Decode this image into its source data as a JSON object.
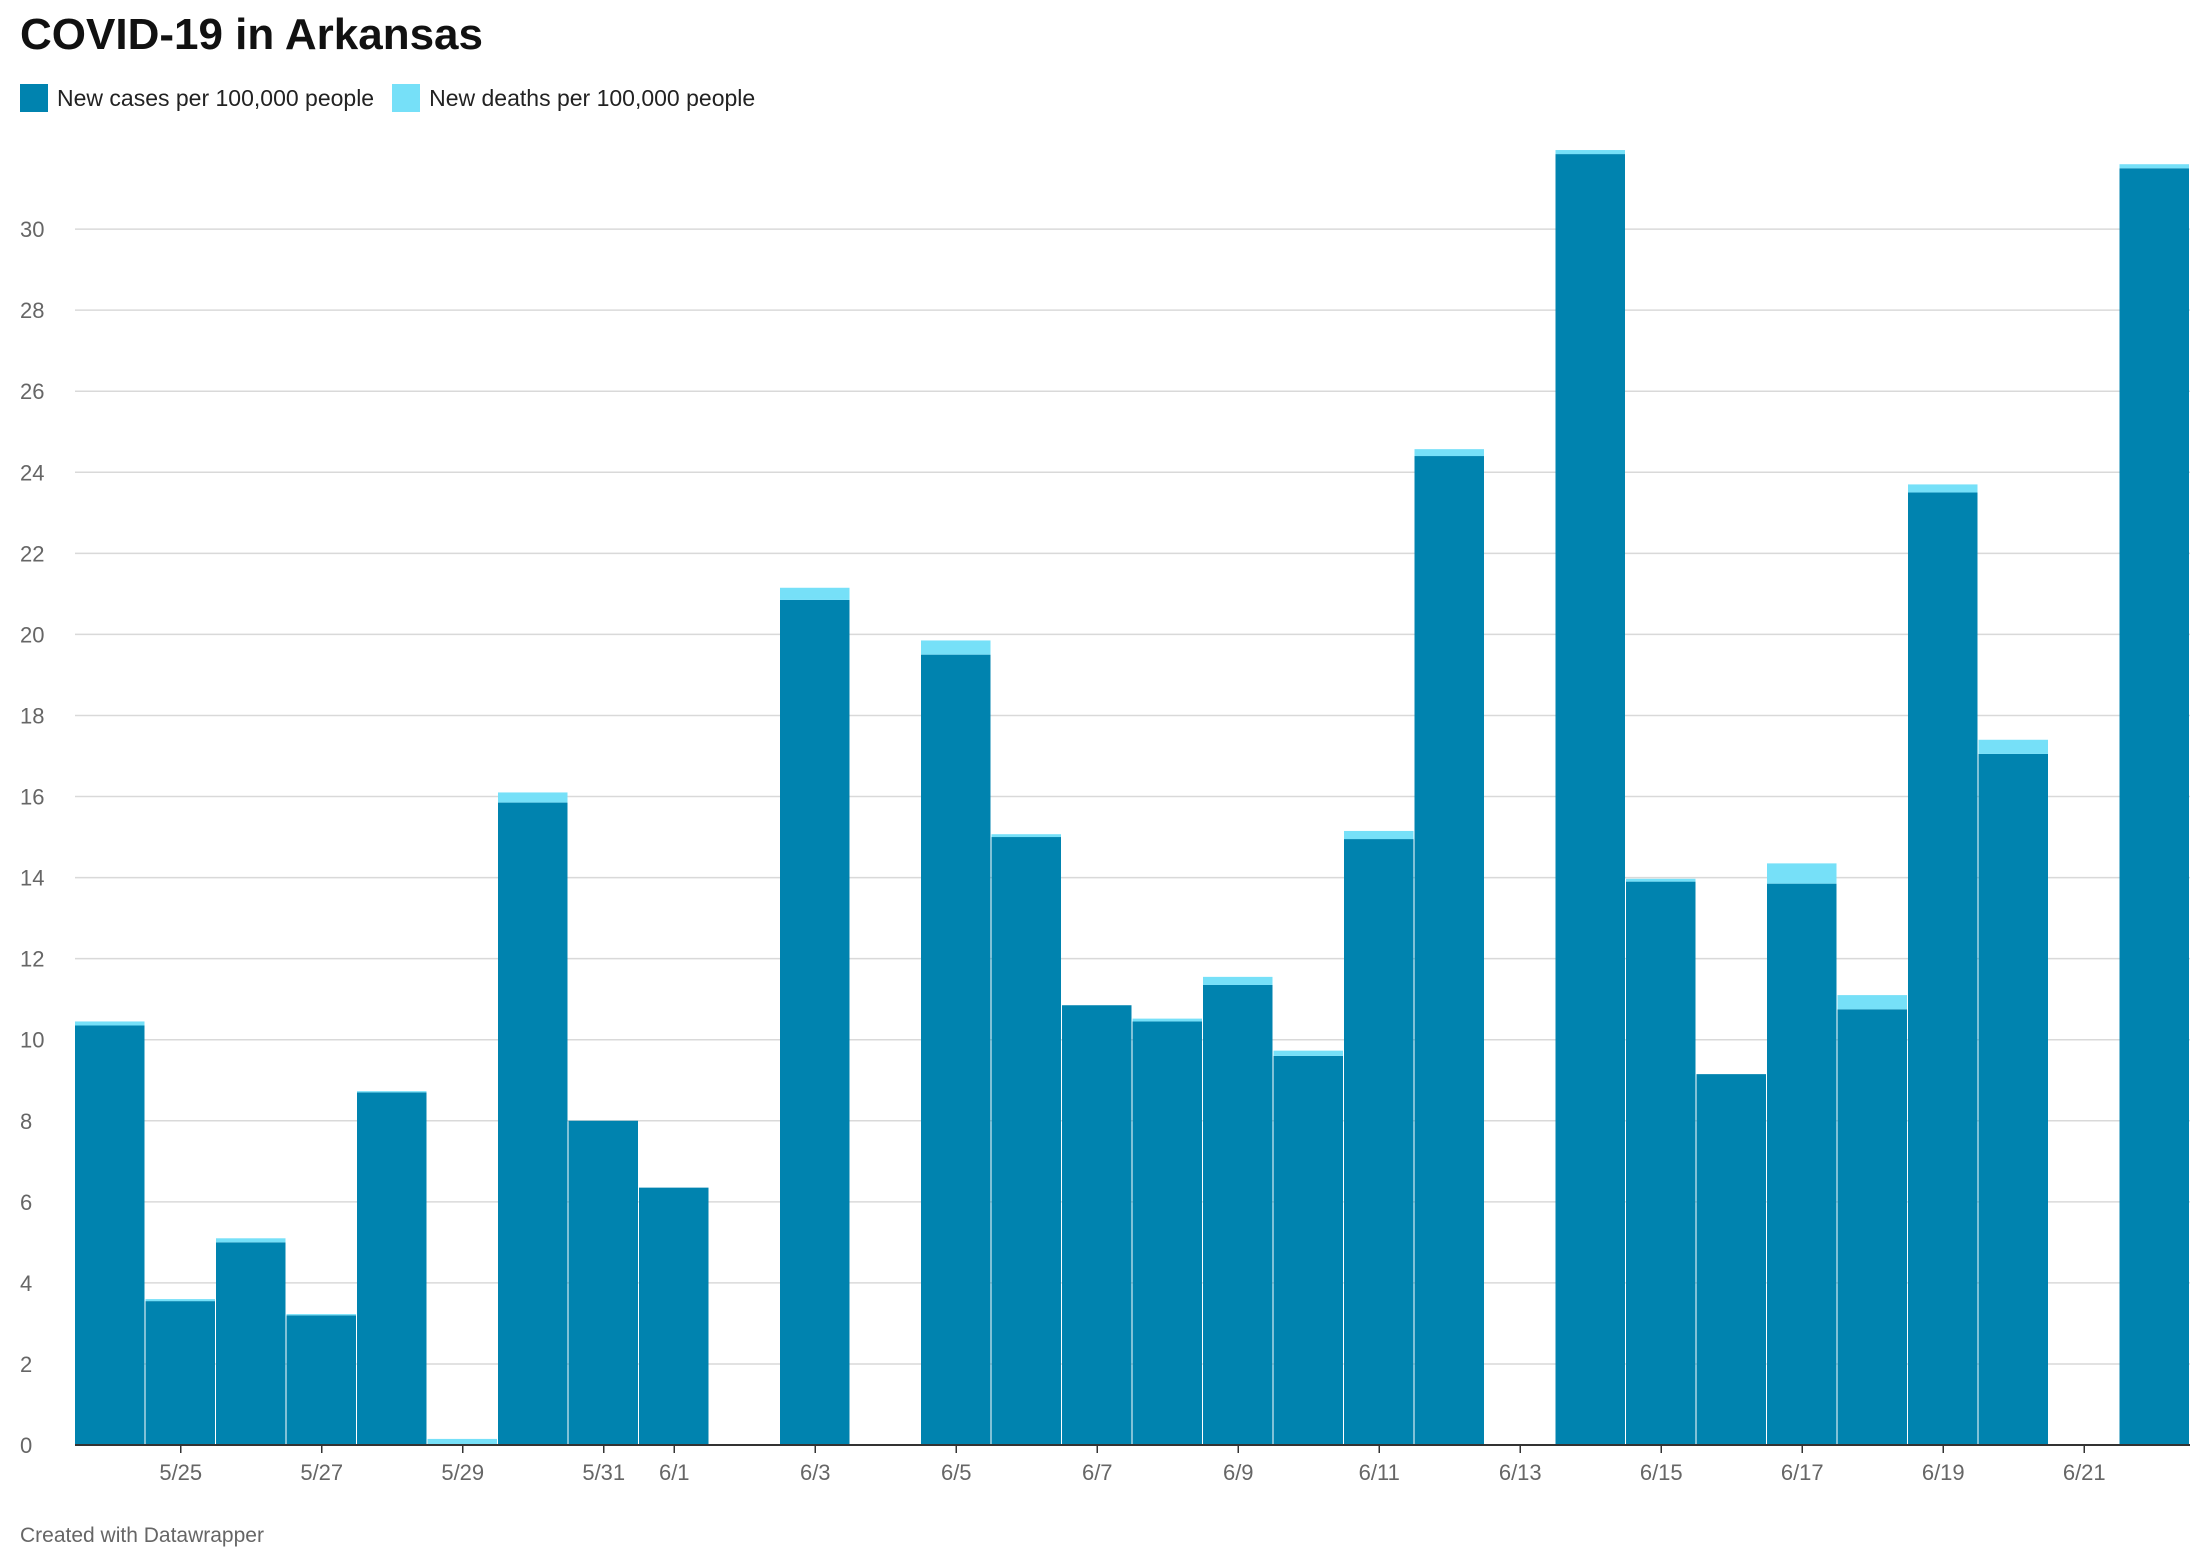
{
  "title": "COVID-19 in Arkansas",
  "footer": "Created with Datawrapper",
  "colors": {
    "cases": "#0083AF",
    "deaths": "#76E0F8",
    "grid": "#d9d9d9",
    "axis": "#333333"
  },
  "legend": [
    {
      "label": "New cases per 100,000 people",
      "color": "#0083AF"
    },
    {
      "label": "New deaths per 100,000 people",
      "color": "#76E0F8"
    }
  ],
  "chart_data": {
    "type": "bar",
    "stacked": true,
    "categories": [
      "5/24",
      "5/25",
      "5/26",
      "5/27",
      "5/28",
      "5/29",
      "5/30",
      "5/31",
      "6/1",
      "6/2",
      "6/3",
      "6/4",
      "6/5",
      "6/6",
      "6/7",
      "6/8",
      "6/9",
      "6/10",
      "6/11",
      "6/12",
      "6/13",
      "6/14",
      "6/15",
      "6/16",
      "6/17",
      "6/18",
      "6/19",
      "6/20",
      "6/21",
      "6/22"
    ],
    "x_tick_labels": [
      "5/25",
      "5/27",
      "5/29",
      "5/31",
      "6/1",
      "6/3",
      "6/5",
      "6/7",
      "6/9",
      "6/11",
      "6/13",
      "6/15",
      "6/17",
      "6/19",
      "6/21"
    ],
    "series": [
      {
        "name": "New cases per 100,000 people",
        "values": [
          10.35,
          3.55,
          5.0,
          3.2,
          8.7,
          0,
          15.85,
          8.0,
          6.35,
          0,
          20.85,
          0,
          19.5,
          15.0,
          10.85,
          10.45,
          11.35,
          9.6,
          14.95,
          24.4,
          0,
          31.85,
          13.9,
          9.15,
          13.85,
          10.75,
          23.5,
          17.05,
          0,
          31.5
        ]
      },
      {
        "name": "New deaths per 100,000 people",
        "values": [
          0.1,
          0.05,
          0.1,
          0.03,
          0.03,
          0.15,
          0.25,
          0,
          0,
          0,
          0.3,
          0,
          0.35,
          0.07,
          0,
          0.07,
          0.2,
          0.13,
          0.2,
          0.17,
          0,
          0.1,
          0.07,
          0,
          0.5,
          0.35,
          0.2,
          0.35,
          0,
          0.1
        ]
      }
    ],
    "yticks": [
      0,
      2,
      4,
      6,
      8,
      10,
      12,
      14,
      16,
      18,
      20,
      22,
      24,
      26,
      28,
      30
    ],
    "ylim": [
      0,
      32
    ],
    "grid": true,
    "legend_position": "top-left"
  }
}
